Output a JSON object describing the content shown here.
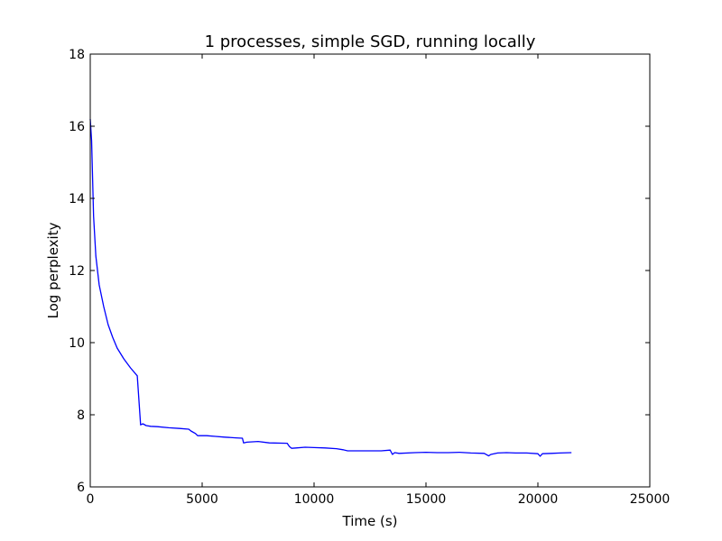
{
  "chart_data": {
    "type": "line",
    "title": "1 processes, simple SGD, running locally",
    "xlabel": "Time (s)",
    "ylabel": "Log perplexity",
    "xlim": [
      0,
      25000
    ],
    "ylim": [
      6,
      18
    ],
    "xticks": [
      0,
      5000,
      10000,
      15000,
      20000,
      25000
    ],
    "yticks": [
      6,
      8,
      10,
      12,
      14,
      16,
      18
    ],
    "grid": false,
    "legend": "none",
    "series": [
      {
        "color": "#0000ff",
        "x": [
          0,
          60,
          150,
          250,
          400,
          600,
          800,
          1000,
          1200,
          1500,
          1800,
          2100,
          2250,
          2350,
          2500,
          2700,
          3000,
          3500,
          4000,
          4400,
          4500,
          4700,
          4800,
          5200,
          5600,
          6000,
          6500,
          6800,
          6850,
          7000,
          7500,
          8000,
          8800,
          8900,
          9000,
          9200,
          9600,
          10000,
          10500,
          11000,
          11300,
          11500,
          12000,
          12500,
          13000,
          13400,
          13500,
          13600,
          13800,
          14500,
          15000,
          15500,
          16000,
          16500,
          17000,
          17600,
          17800,
          17900,
          18200,
          18600,
          19000,
          19500,
          20000,
          20100,
          20200,
          20600,
          21000,
          21500
        ],
        "y": [
          16.2,
          15.6,
          13.5,
          12.4,
          11.6,
          11.0,
          10.5,
          10.15,
          9.85,
          9.55,
          9.3,
          9.08,
          7.72,
          7.75,
          7.7,
          7.68,
          7.67,
          7.64,
          7.62,
          7.6,
          7.55,
          7.48,
          7.42,
          7.42,
          7.4,
          7.38,
          7.36,
          7.35,
          7.22,
          7.24,
          7.26,
          7.22,
          7.21,
          7.12,
          7.07,
          7.08,
          7.1,
          7.09,
          7.08,
          7.06,
          7.03,
          7.0,
          7.0,
          7.0,
          7.0,
          7.02,
          6.9,
          6.95,
          6.93,
          6.95,
          6.96,
          6.95,
          6.95,
          6.96,
          6.94,
          6.93,
          6.86,
          6.9,
          6.94,
          6.95,
          6.94,
          6.94,
          6.92,
          6.85,
          6.92,
          6.93,
          6.94,
          6.95
        ]
      }
    ]
  }
}
